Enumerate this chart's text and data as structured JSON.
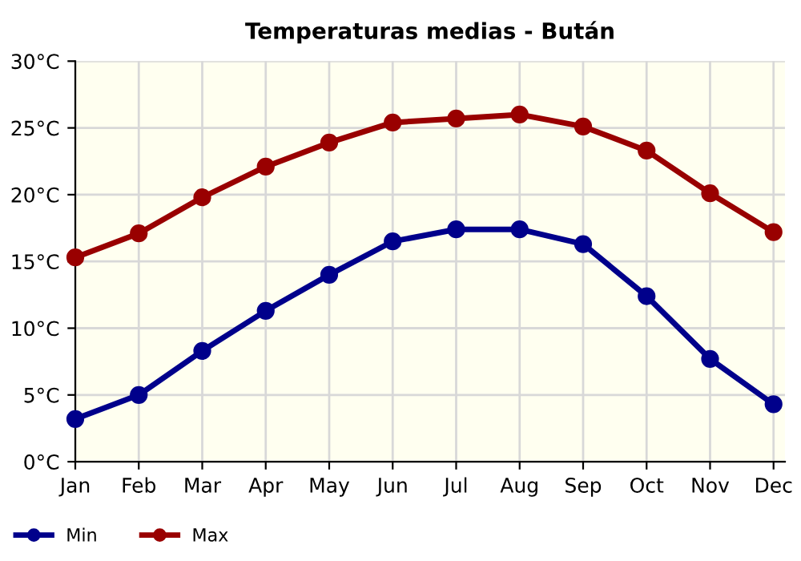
{
  "chart_data": {
    "type": "line",
    "title": "Temperaturas medias - Bután",
    "categories": [
      "Jan",
      "Feb",
      "Mar",
      "Apr",
      "May",
      "Jun",
      "Jul",
      "Aug",
      "Sep",
      "Oct",
      "Nov",
      "Dec"
    ],
    "series": [
      {
        "name": "Min",
        "color": "#00008b",
        "values": [
          3.2,
          5.0,
          8.3,
          11.3,
          14.0,
          16.5,
          17.4,
          17.4,
          16.3,
          12.4,
          7.7,
          4.3
        ]
      },
      {
        "name": "Max",
        "color": "#990000",
        "values": [
          15.3,
          17.1,
          19.8,
          22.1,
          23.9,
          25.4,
          25.7,
          26.0,
          25.1,
          23.3,
          20.1,
          17.2
        ]
      }
    ],
    "ylim": [
      0,
      30
    ],
    "yticks": [
      {
        "value": 0,
        "label": "0°C"
      },
      {
        "value": 5,
        "label": "5°C"
      },
      {
        "value": 10,
        "label": "10°C"
      },
      {
        "value": 15,
        "label": "15°C"
      },
      {
        "value": 20,
        "label": "20°C"
      },
      {
        "value": 25,
        "label": "25°C"
      },
      {
        "value": 30,
        "label": "30°C"
      }
    ],
    "grid": true,
    "legend": "bottom left",
    "marker": "circle",
    "line_style": "solid"
  }
}
